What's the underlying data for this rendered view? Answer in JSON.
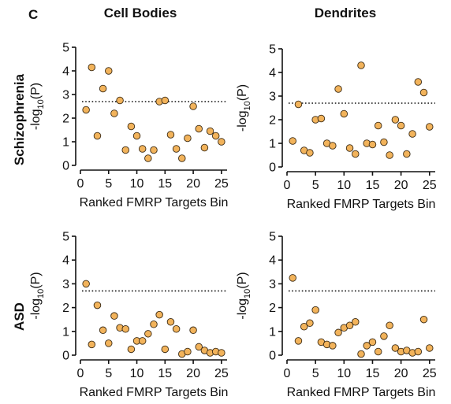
{
  "figure": {
    "panel_letter": "C",
    "column_titles": [
      "Cell Bodies",
      "Dendrites"
    ],
    "row_labels": [
      "Schizophrenia",
      "ASD"
    ],
    "colors": {
      "marker_fill": "#f2b35b",
      "marker_edge": "#3a2a14",
      "axes": "#111111"
    }
  },
  "chart_data": [
    {
      "type": "scatter",
      "column": "Cell Bodies",
      "row": "Schizophrenia",
      "xlabel": "Ranked FMRP Targets Bin",
      "ylabel": {
        "base": "-log",
        "sub": "10",
        "suffix": "(P)"
      },
      "xlim": [
        0,
        26
      ],
      "ylim": [
        0,
        5
      ],
      "xticks": [
        "0",
        "5",
        "10",
        "15",
        "20",
        "25"
      ],
      "yticks": [
        "0",
        "1",
        "2",
        "3",
        "4",
        "5"
      ],
      "threshold": 2.7,
      "points": [
        [
          1,
          2.35
        ],
        [
          2,
          4.15
        ],
        [
          3,
          1.25
        ],
        [
          4,
          3.25
        ],
        [
          5,
          4.0
        ],
        [
          6,
          2.2
        ],
        [
          7,
          2.75
        ],
        [
          8,
          0.65
        ],
        [
          9,
          1.65
        ],
        [
          10,
          1.25
        ],
        [
          11,
          0.7
        ],
        [
          12,
          0.3
        ],
        [
          13,
          0.65
        ],
        [
          14,
          2.7
        ],
        [
          15,
          2.75
        ],
        [
          16,
          1.3
        ],
        [
          17,
          0.7
        ],
        [
          18,
          0.3
        ],
        [
          19,
          1.15
        ],
        [
          20,
          2.5
        ],
        [
          21,
          1.55
        ],
        [
          22,
          0.75
        ],
        [
          23,
          1.45
        ],
        [
          24,
          1.25
        ],
        [
          25,
          1.0
        ]
      ]
    },
    {
      "type": "scatter",
      "column": "Dendrites",
      "row": "Schizophrenia",
      "xlabel": "Ranked FMRP Targets Bin",
      "ylabel": {
        "base": "-log",
        "sub": "10",
        "suffix": "(P)"
      },
      "xlim": [
        0,
        26
      ],
      "ylim": [
        0,
        5
      ],
      "xticks": [
        "0",
        "5",
        "10",
        "15",
        "20",
        "25"
      ],
      "yticks": [
        "0",
        "1",
        "2",
        "3",
        "4",
        "5"
      ],
      "threshold": 2.7,
      "points": [
        [
          1,
          1.1
        ],
        [
          2,
          2.65
        ],
        [
          3,
          0.7
        ],
        [
          4,
          0.6
        ],
        [
          5,
          2.0
        ],
        [
          6,
          2.05
        ],
        [
          7,
          1.0
        ],
        [
          8,
          0.9
        ],
        [
          9,
          3.3
        ],
        [
          10,
          2.25
        ],
        [
          11,
          0.8
        ],
        [
          12,
          0.55
        ],
        [
          13,
          4.3
        ],
        [
          14,
          1.0
        ],
        [
          15,
          0.95
        ],
        [
          16,
          1.75
        ],
        [
          17,
          1.05
        ],
        [
          18,
          0.5
        ],
        [
          19,
          2.0
        ],
        [
          20,
          1.75
        ],
        [
          21,
          0.55
        ],
        [
          22,
          1.4
        ],
        [
          23,
          3.6
        ],
        [
          24,
          3.15
        ],
        [
          25,
          1.7
        ]
      ]
    },
    {
      "type": "scatter",
      "column": "Cell Bodies",
      "row": "ASD",
      "xlabel": "Ranked FMRP Targets Bin",
      "ylabel": {
        "base": "-log",
        "sub": "10",
        "suffix": "(P)"
      },
      "xlim": [
        0,
        26
      ],
      "ylim": [
        0,
        5
      ],
      "xticks": [
        "0",
        "5",
        "10",
        "15",
        "20",
        "25"
      ],
      "yticks": [
        "0",
        "1",
        "2",
        "3",
        "4",
        "5"
      ],
      "threshold": 2.7,
      "points": [
        [
          1,
          3.0
        ],
        [
          2,
          0.45
        ],
        [
          3,
          2.1
        ],
        [
          4,
          1.05
        ],
        [
          5,
          0.5
        ],
        [
          6,
          1.65
        ],
        [
          7,
          1.15
        ],
        [
          8,
          1.1
        ],
        [
          9,
          0.25
        ],
        [
          10,
          0.6
        ],
        [
          11,
          0.6
        ],
        [
          12,
          0.9
        ],
        [
          13,
          1.3
        ],
        [
          14,
          1.7
        ],
        [
          15,
          0.25
        ],
        [
          16,
          1.4
        ],
        [
          17,
          1.1
        ],
        [
          18,
          0.05
        ],
        [
          19,
          0.15
        ],
        [
          20,
          1.05
        ],
        [
          21,
          0.35
        ],
        [
          22,
          0.2
        ],
        [
          23,
          0.1
        ],
        [
          24,
          0.15
        ],
        [
          25,
          0.1
        ]
      ]
    },
    {
      "type": "scatter",
      "column": "Dendrites",
      "row": "ASD",
      "xlabel": "Ranked FMRP Targets Bin",
      "ylabel": {
        "base": "-log",
        "sub": "10",
        "suffix": "(P)"
      },
      "xlim": [
        0,
        26
      ],
      "ylim": [
        0,
        5
      ],
      "xticks": [
        "0",
        "5",
        "10",
        "15",
        "20",
        "25"
      ],
      "yticks": [
        "0",
        "1",
        "2",
        "3",
        "4",
        "5"
      ],
      "threshold": 2.7,
      "points": [
        [
          1,
          3.25
        ],
        [
          2,
          0.6
        ],
        [
          3,
          1.2
        ],
        [
          4,
          1.35
        ],
        [
          5,
          1.9
        ],
        [
          6,
          0.55
        ],
        [
          7,
          0.45
        ],
        [
          8,
          0.4
        ],
        [
          9,
          0.95
        ],
        [
          10,
          1.15
        ],
        [
          11,
          1.25
        ],
        [
          12,
          1.4
        ],
        [
          13,
          0.05
        ],
        [
          14,
          0.4
        ],
        [
          15,
          0.55
        ],
        [
          16,
          0.15
        ],
        [
          17,
          0.8
        ],
        [
          18,
          1.25
        ],
        [
          19,
          0.3
        ],
        [
          20,
          0.15
        ],
        [
          21,
          0.2
        ],
        [
          22,
          0.1
        ],
        [
          23,
          0.15
        ],
        [
          24,
          1.5
        ],
        [
          25,
          0.3
        ]
      ]
    }
  ]
}
